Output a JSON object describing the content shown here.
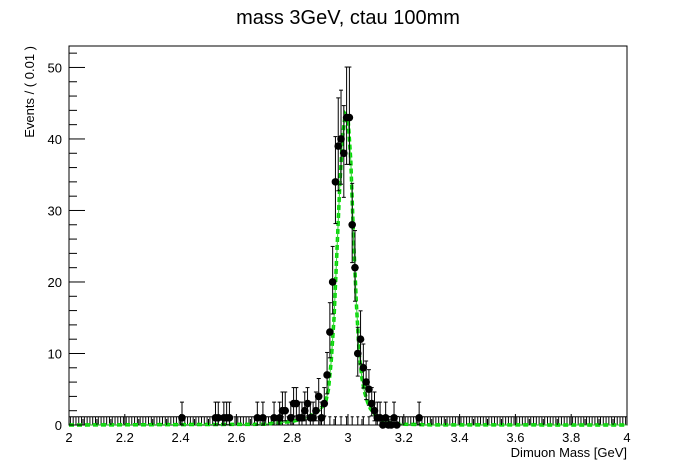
{
  "chart_data": {
    "type": "scatter",
    "title": "mass 3GeV, ctau 100mm",
    "xlabel": "Dimuon Mass [GeV]",
    "ylabel": "Events / ( 0.01 )",
    "xlim": [
      2,
      4
    ],
    "ylim": [
      0,
      53
    ],
    "xticks": [
      "2",
      "2.2",
      "2.4",
      "2.6",
      "2.8",
      "3",
      "3.2",
      "3.4",
      "3.6",
      "3.8",
      "4"
    ],
    "yticks": [
      "0",
      "10",
      "20",
      "30",
      "40",
      "50"
    ],
    "bin_width": 0.01,
    "grid": false,
    "colors": {
      "data": "#000000",
      "fit": "#00dd00",
      "fit_line": "#33cc33"
    },
    "series": [
      {
        "kind": "data_points_with_errors",
        "x": [
          2.405,
          2.525,
          2.535,
          2.555,
          2.565,
          2.575,
          2.675,
          2.695,
          2.735,
          2.755,
          2.765,
          2.775,
          2.795,
          2.805,
          2.815,
          2.825,
          2.835,
          2.845,
          2.855,
          2.865,
          2.875,
          2.885,
          2.895,
          2.905,
          2.915,
          2.925,
          2.935,
          2.945,
          2.955,
          2.965,
          2.975,
          2.985,
          2.995,
          3.005,
          3.015,
          3.025,
          3.035,
          3.045,
          3.055,
          3.065,
          3.075,
          3.085,
          3.095,
          3.105,
          3.115,
          3.125,
          3.135,
          3.145,
          3.155,
          3.165,
          3.175,
          3.255
        ],
        "y": [
          1,
          1,
          1,
          1,
          1,
          1,
          1,
          1,
          1,
          1,
          2,
          2,
          1,
          3,
          3,
          1,
          1,
          2,
          3,
          1,
          1,
          2,
          4,
          1,
          3,
          7,
          13,
          20,
          34,
          39,
          40,
          38,
          43,
          43,
          28,
          22,
          10,
          12,
          8,
          6,
          5,
          3,
          2,
          1,
          1,
          0,
          1,
          0,
          0,
          1,
          0,
          1
        ]
      },
      {
        "kind": "fit_curve",
        "x": [
          2.0,
          2.7,
          2.8,
          2.85,
          2.88,
          2.9,
          2.92,
          2.93,
          2.94,
          2.95,
          2.96,
          2.97,
          2.98,
          2.99,
          3.0,
          3.01,
          3.02,
          3.03,
          3.04,
          3.05,
          3.06,
          3.07,
          3.08,
          3.1,
          3.12,
          3.15,
          3.2,
          3.3,
          4.0
        ],
        "y": [
          0,
          0.1,
          0.5,
          1.0,
          1.6,
          2.2,
          3.2,
          5,
          9,
          15,
          24,
          33,
          40,
          43.5,
          43,
          37,
          26,
          17,
          10,
          6.5,
          4.5,
          3.2,
          2.3,
          1.3,
          0.7,
          0.3,
          0.1,
          0.02,
          0
        ]
      }
    ]
  }
}
